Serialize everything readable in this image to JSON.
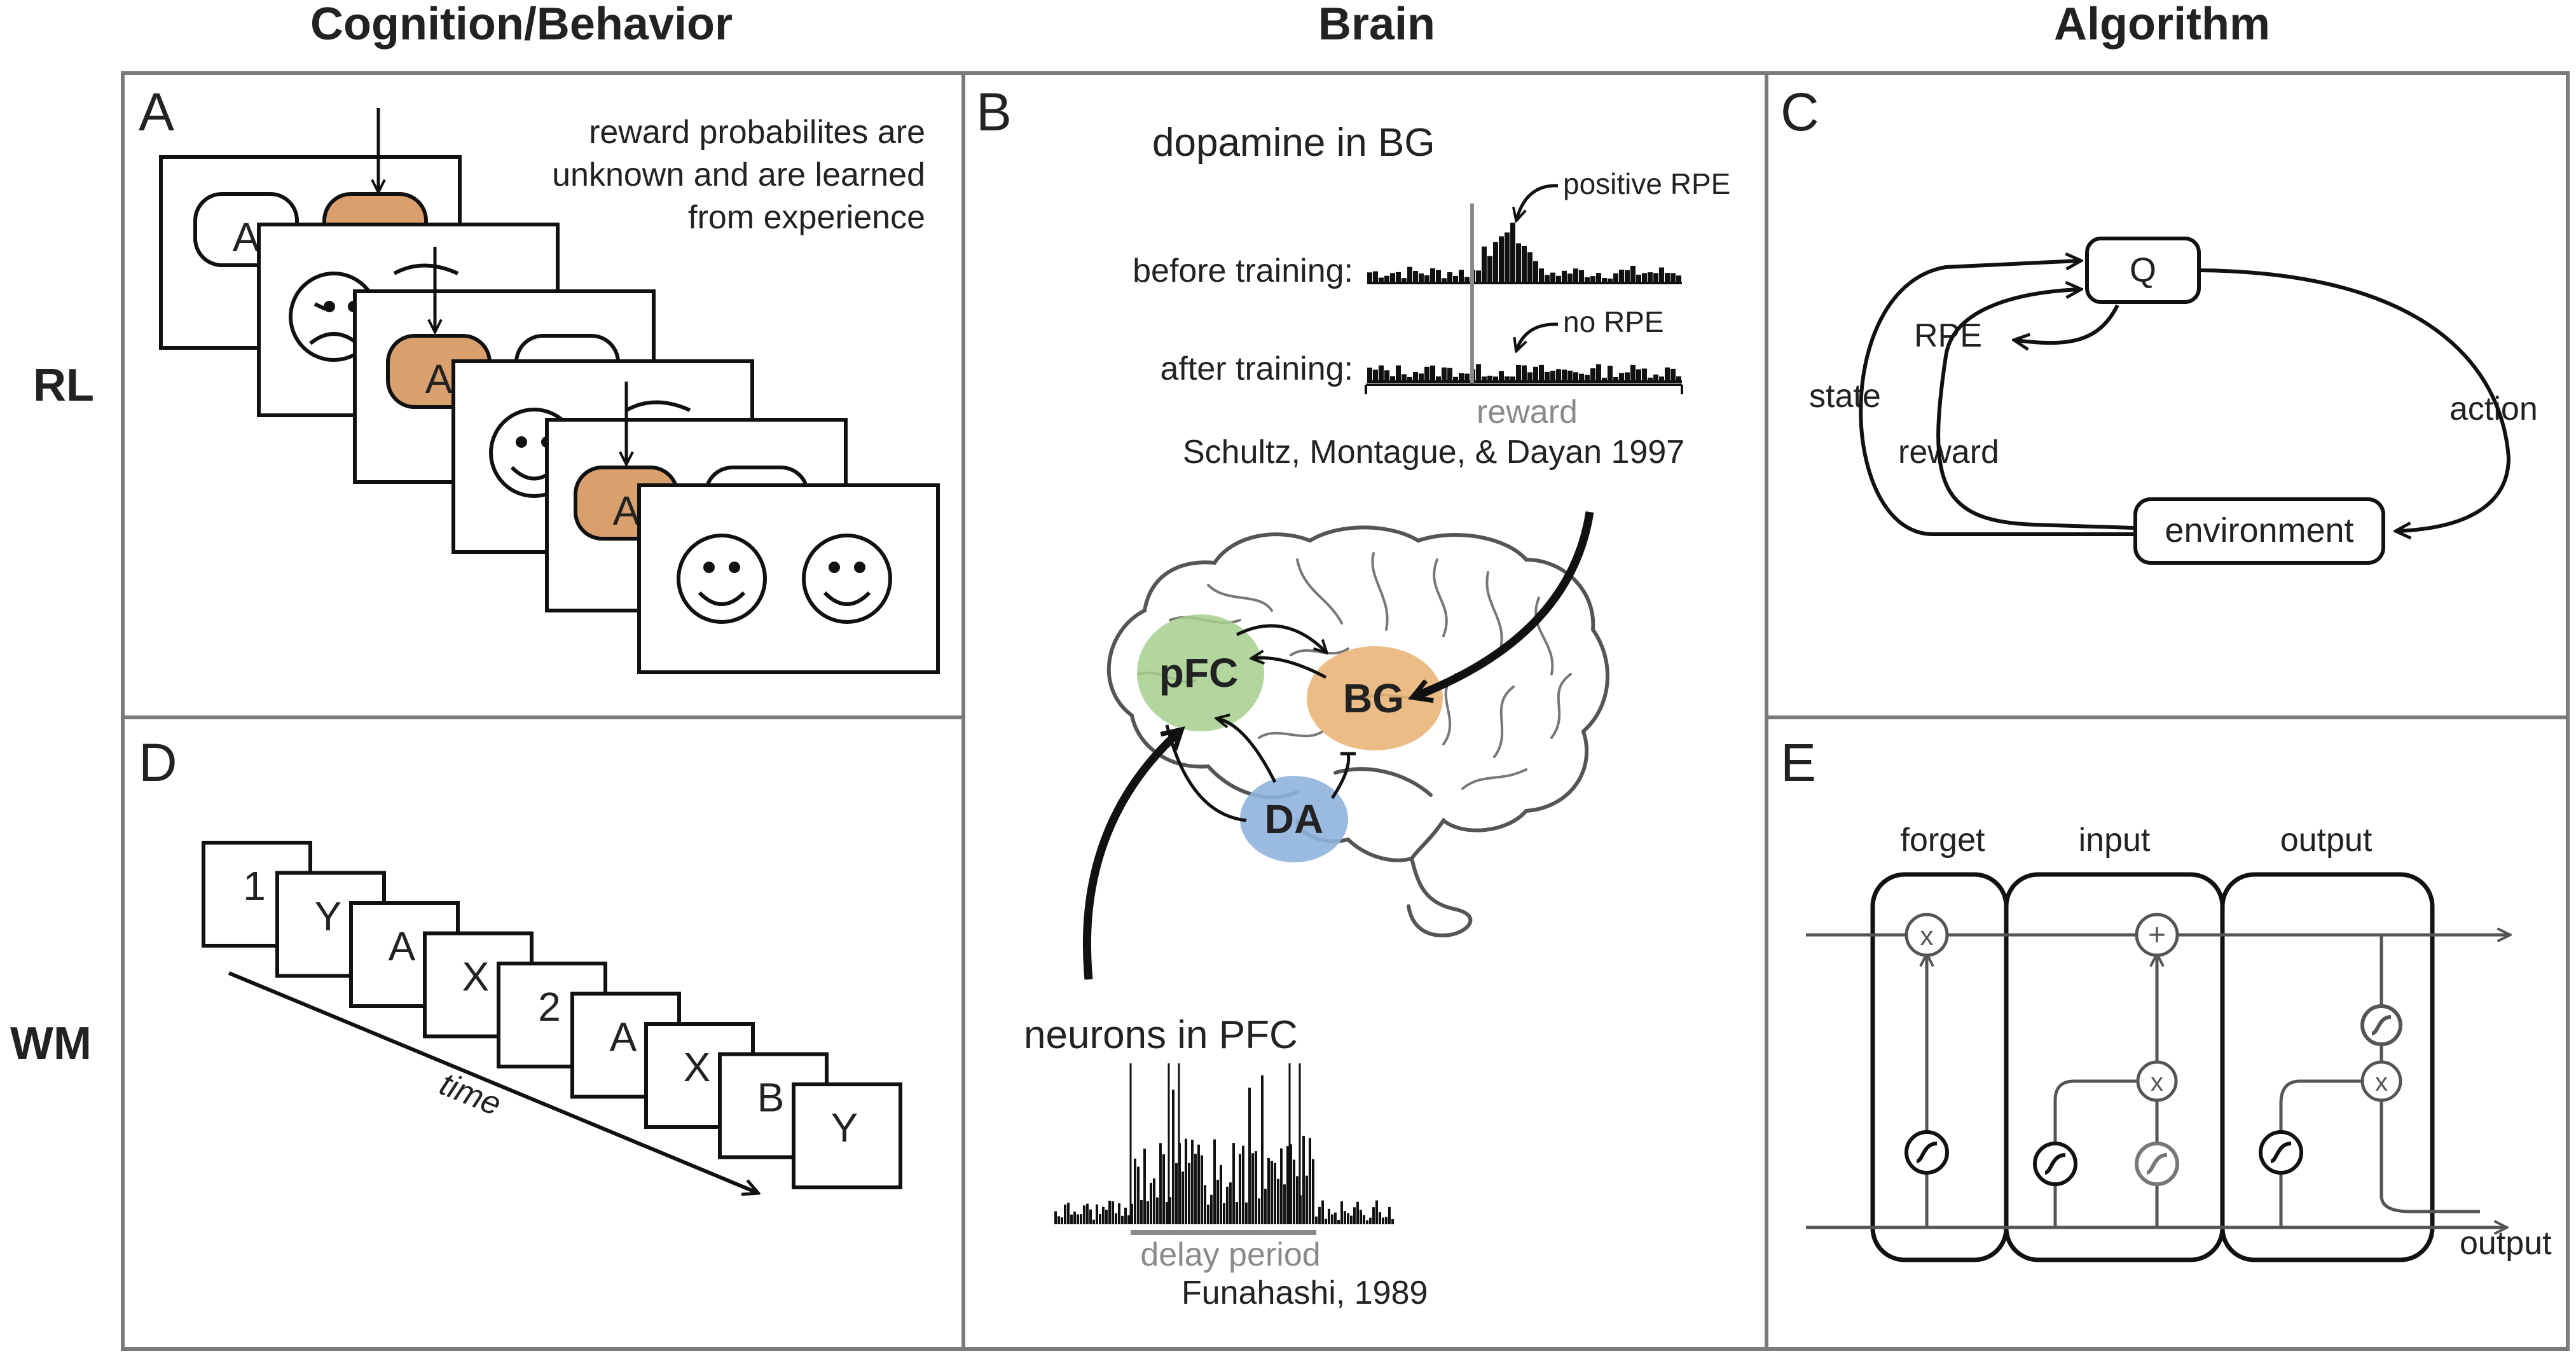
{
  "columns": {
    "cognition": "Cognition/Behavior",
    "brain": "Brain",
    "algorithm": "Algorithm"
  },
  "rows": {
    "rl": "RL",
    "wm": "WM"
  },
  "panel_letters": {
    "a": "A",
    "b": "B",
    "c": "C",
    "d": "D",
    "e": "E"
  },
  "panel_a": {
    "note": [
      "reward probabilites are",
      "unknown and are learned",
      "from experience"
    ],
    "option_a": "A",
    "colors": {
      "chosen": "#d9a06e",
      "frame": "#111111"
    }
  },
  "panel_b": {
    "dopamine_title": "dopamine in BG",
    "before_label": "before training:",
    "after_label": "after training:",
    "positive_rpe": "positive RPE",
    "no_rpe": "no RPE",
    "reward_label": "reward",
    "citation_top": "Schultz, Montague, & Dayan 1997",
    "regions": {
      "pfc": "pFC",
      "bg": "BG",
      "da": "DA"
    },
    "region_colors": {
      "pfc": "#a6cf8d",
      "bg": "#e8b070",
      "da": "#8fb4dc"
    },
    "neurons_title": "neurons in PFC",
    "delay_label": "delay period",
    "citation_bottom": "Funahashi, 1989"
  },
  "panel_c": {
    "q": "Q",
    "rpe": "RPE",
    "state": "state",
    "reward": "reward",
    "action": "action",
    "environment": "environment"
  },
  "panel_d": {
    "sequence": [
      "1",
      "Y",
      "A",
      "X",
      "2",
      "A",
      "X",
      "B",
      "Y"
    ],
    "time_label": "time"
  },
  "panel_e": {
    "gates": [
      "forget",
      "input",
      "output"
    ],
    "times_symbol": "x",
    "plus_symbol": "+",
    "output_label": "output"
  }
}
